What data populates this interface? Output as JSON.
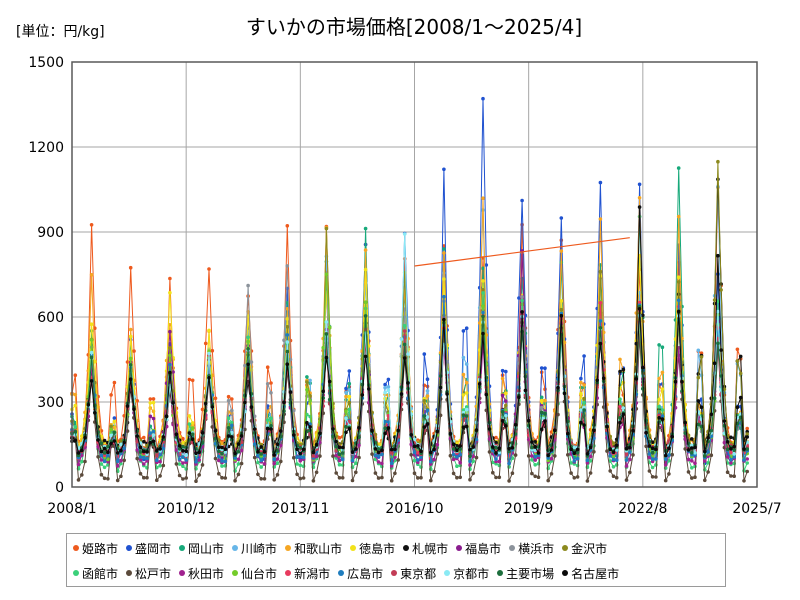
{
  "chart_data": {
    "type": "line",
    "title": "すいかの市場価格[2008/1～2025/4]",
    "unit_label": "[単位：円/kg]",
    "x_ticks": [
      "2008/1",
      "2010/12",
      "2013/11",
      "2016/10",
      "2019/9",
      "2022/8",
      "2025/7"
    ],
    "x_range": [
      "2008-01",
      "2025-07"
    ],
    "ylim": [
      0,
      1500
    ],
    "y_ticks": [
      0,
      300,
      600,
      900,
      1200,
      1500
    ],
    "grid": true,
    "legend_position": "bottom",
    "season_peak_month": 6,
    "series": [
      {
        "name": "姫路市",
        "color": "#ee5a1e",
        "annual_peak": [
          870,
          820,
          670,
          820,
          740,
          910,
          840,
          800,
          780,
          800,
          840,
          860,
          880,
          820,
          810,
          780,
          1050
        ],
        "off_season_low": 140
      },
      {
        "name": "盛岡市",
        "color": "#2052d0",
        "annual_peak": [
          560,
          520,
          480,
          480,
          610,
          650,
          700,
          920,
          810,
          1020,
          1240,
          1060,
          970,
          1020,
          1050,
          920,
          720
        ],
        "off_season_low": 90
      },
      {
        "name": "岡山市",
        "color": "#17a97a",
        "annual_peak": [
          530,
          490,
          470,
          520,
          560,
          600,
          830,
          820,
          720,
          760,
          820,
          800,
          720,
          760,
          920,
          1080,
          560
        ],
        "off_season_low": 100
      },
      {
        "name": "川崎市",
        "color": "#67b6e8",
        "annual_peak": [
          480,
          460,
          450,
          500,
          540,
          560,
          850,
          760,
          800,
          740,
          990,
          680,
          660,
          740,
          640,
          620,
          1050
        ],
        "off_season_low": 110
      },
      {
        "name": "和歌山市",
        "color": "#f5a623",
        "annual_peak": [
          760,
          520,
          650,
          560,
          600,
          620,
          820,
          780,
          780,
          760,
          930,
          820,
          760,
          900,
          970,
          860,
          620
        ],
        "off_season_low": 130
      },
      {
        "name": "徳島市",
        "color": "#f2e21a",
        "annual_peak": [
          620,
          500,
          640,
          540,
          560,
          600,
          760,
          700,
          690,
          720,
          760,
          720,
          680,
          760,
          800,
          780,
          640
        ],
        "off_season_low": 130
      },
      {
        "name": "札幌市",
        "color": "#111111",
        "annual_peak": [
          430,
          360,
          340,
          400,
          380,
          420,
          460,
          520,
          460,
          520,
          520,
          600,
          560,
          600,
          890,
          640,
          1070
        ],
        "off_season_low": 140
      },
      {
        "name": "福島市",
        "color": "#8a1c8e",
        "annual_peak": [
          440,
          420,
          590,
          430,
          460,
          480,
          540,
          560,
          520,
          600,
          620,
          800,
          640,
          620,
          620,
          560,
          560
        ],
        "off_season_low": 110
      },
      {
        "name": "横浜市",
        "color": "#8c939b",
        "annual_peak": [
          450,
          420,
          400,
          420,
          650,
          800,
          700,
          640,
          600,
          620,
          640,
          640,
          600,
          620,
          580,
          560,
          520
        ],
        "off_season_low": 120
      },
      {
        "name": "金沢市",
        "color": "#8c8a1e",
        "annual_peak": [
          500,
          460,
          440,
          460,
          500,
          520,
          820,
          700,
          700,
          680,
          640,
          620,
          600,
          700,
          640,
          680,
          1040
        ],
        "off_season_low": 130
      },
      {
        "name": "函館市",
        "color": "#3bd07a",
        "annual_peak": [
          470,
          450,
          430,
          480,
          520,
          540,
          580,
          600,
          560,
          600,
          620,
          600,
          580,
          640,
          660,
          620,
          600
        ],
        "off_season_low": 60
      },
      {
        "name": "松戸市",
        "color": "#5b4a3b",
        "annual_peak": [
          400,
          380,
          360,
          400,
          420,
          440,
          480,
          500,
          480,
          500,
          520,
          520,
          500,
          540,
          560,
          520,
          560
        ],
        "off_season_low": 20
      },
      {
        "name": "秋田市",
        "color": "#a0228f",
        "annual_peak": [
          420,
          400,
          380,
          420,
          440,
          460,
          500,
          520,
          500,
          540,
          560,
          580,
          560,
          560,
          560,
          520,
          540
        ],
        "off_season_low": 80
      },
      {
        "name": "仙台市",
        "color": "#74cc2a",
        "annual_peak": [
          470,
          450,
          430,
          450,
          480,
          500,
          820,
          600,
          560,
          600,
          620,
          600,
          560,
          600,
          620,
          600,
          560
        ],
        "off_season_low": 100
      },
      {
        "name": "新潟市",
        "color": "#e83a5e",
        "annual_peak": [
          420,
          400,
          400,
          420,
          440,
          460,
          520,
          560,
          540,
          560,
          600,
          580,
          560,
          600,
          620,
          600,
          560
        ],
        "off_season_low": 110
      },
      {
        "name": "広島市",
        "color": "#1f7dbe",
        "annual_peak": [
          460,
          440,
          420,
          460,
          480,
          500,
          560,
          580,
          560,
          600,
          620,
          600,
          580,
          600,
          620,
          600,
          580
        ],
        "off_season_low": 90
      },
      {
        "name": "東京都",
        "color": "#c23c56",
        "annual_peak": [
          420,
          400,
          380,
          420,
          440,
          460,
          500,
          520,
          500,
          540,
          560,
          560,
          540,
          560,
          580,
          560,
          560
        ],
        "off_season_low": 120
      },
      {
        "name": "京都市",
        "color": "#8aeaf4",
        "annual_peak": [
          440,
          420,
          400,
          440,
          460,
          480,
          520,
          560,
          800,
          560,
          600,
          580,
          560,
          600,
          620,
          600,
          580
        ],
        "off_season_low": 120
      },
      {
        "name": "主要市場",
        "color": "#1c6e3c",
        "annual_peak": [
          430,
          410,
          390,
          430,
          450,
          470,
          520,
          540,
          520,
          560,
          580,
          580,
          560,
          580,
          600,
          580,
          560
        ],
        "off_season_low": 120
      },
      {
        "name": "名古屋市",
        "color": "#0a0a0a",
        "annual_peak": [
          420,
          400,
          380,
          420,
          440,
          460,
          500,
          520,
          500,
          540,
          560,
          560,
          540,
          560,
          580,
          560,
          740
        ],
        "off_season_low": 120
      }
    ],
    "reference_line": {
      "from": [
        "2016-10",
        780
      ],
      "to": [
        "2022-04",
        880
      ],
      "color": "#ee5a1e"
    }
  }
}
